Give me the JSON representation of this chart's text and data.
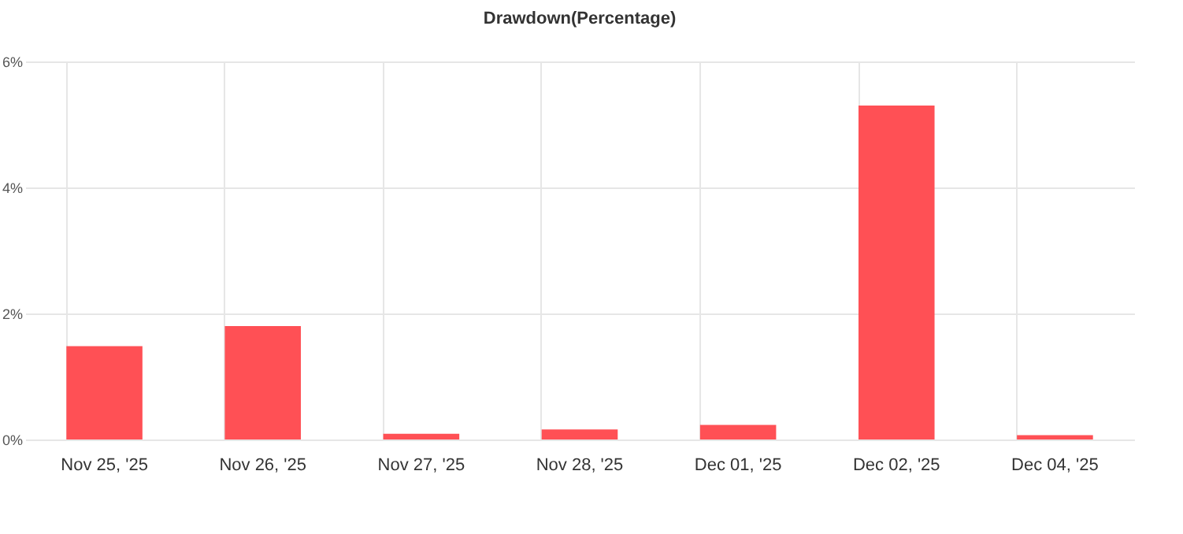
{
  "chart_data": {
    "type": "bar",
    "title": "Drawdown(Percentage)",
    "categories": [
      "Nov 25, '25",
      "Nov 26, '25",
      "Nov 27, '25",
      "Nov 28, '25",
      "Dec 01, '25",
      "Dec 02, '25",
      "Dec 04, '25"
    ],
    "values": [
      1.48,
      1.8,
      0.09,
      0.16,
      0.23,
      5.3,
      0.07
    ],
    "color": "#ff4d52",
    "ylim": [
      0,
      6
    ],
    "yticks": [
      {
        "value": 0,
        "label": "0%"
      },
      {
        "value": 2,
        "label": "2%"
      },
      {
        "value": 4,
        "label": "4%"
      },
      {
        "value": 6,
        "label": "6%"
      }
    ],
    "grid": true
  }
}
